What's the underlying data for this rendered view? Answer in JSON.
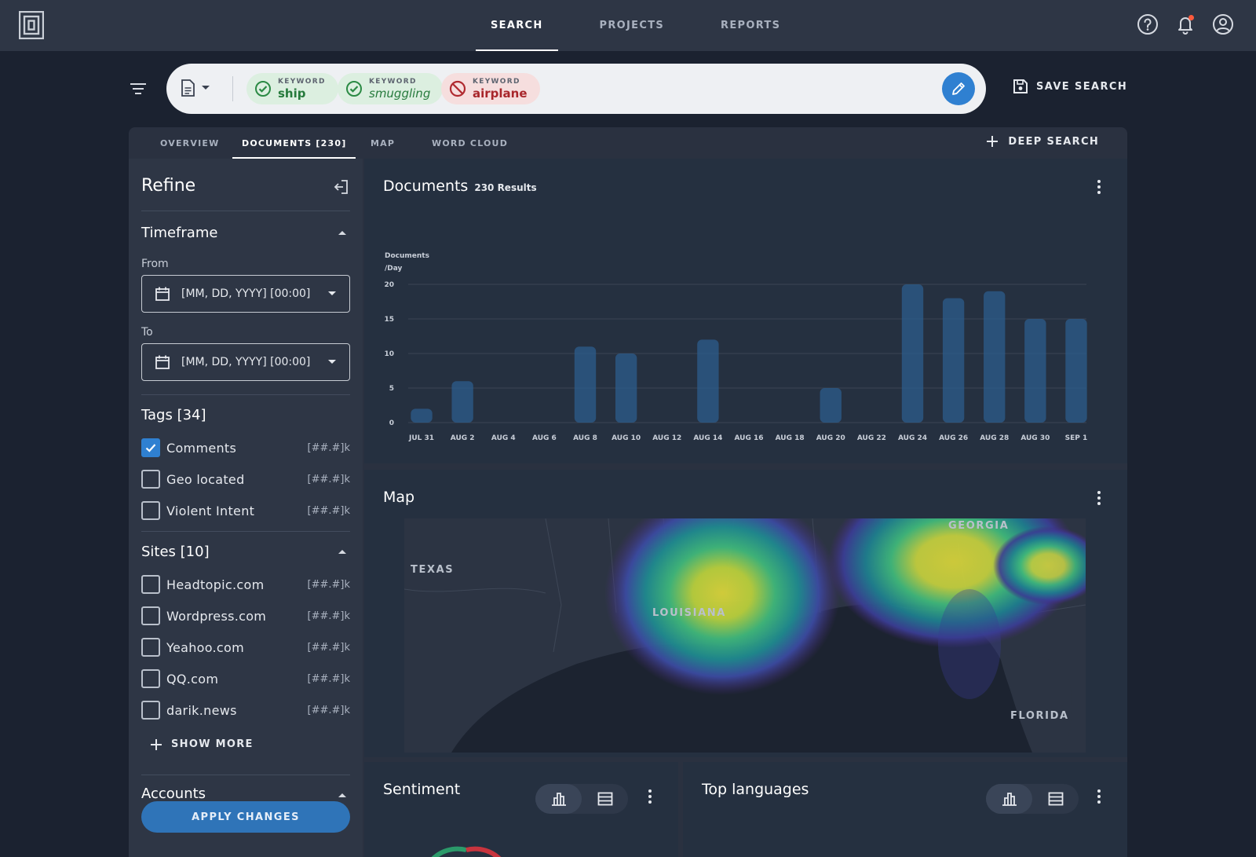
{
  "topbar": {
    "nav": [
      {
        "label": "SEARCH",
        "active": true
      },
      {
        "label": "PROJECTS",
        "active": false
      },
      {
        "label": "REPORTS",
        "active": false
      }
    ],
    "icons": [
      "help-icon",
      "bell-icon",
      "account-icon"
    ]
  },
  "search": {
    "chips": [
      {
        "kind": "KEYWORD",
        "word": "ship",
        "status": "include"
      },
      {
        "kind": "KEYWORD",
        "word": "smuggling",
        "status": "include"
      },
      {
        "kind": "KEYWORD",
        "word": "airplane",
        "status": "exclude"
      }
    ],
    "save_label": "SAVE SEARCH"
  },
  "tabs": [
    {
      "label": "OVERVIEW",
      "active": false
    },
    {
      "label": "DOCUMENTS [230]",
      "active": true
    },
    {
      "label": "MAP",
      "active": false
    },
    {
      "label": "WORD CLOUD",
      "active": false
    }
  ],
  "deep_search_label": "DEEP SEARCH",
  "refine": {
    "title": "Refine",
    "timeframe": {
      "title": "Timeframe",
      "from_label": "From",
      "to_label": "To",
      "from_placeholder": "[MM, DD, YYYY] [00:00]",
      "to_placeholder": "[MM, DD, YYYY] [00:00]"
    },
    "tags": {
      "title": "Tags [34]",
      "items": [
        {
          "label": "Comments",
          "count": "[##.#]k",
          "checked": true
        },
        {
          "label": "Geo located",
          "count": "[##.#]k",
          "checked": false
        },
        {
          "label": "Violent Intent",
          "count": "[##.#]k",
          "checked": false
        }
      ]
    },
    "sites": {
      "title": "Sites [10]",
      "items": [
        {
          "label": "Headtopic.com",
          "count": "[##.#]k",
          "checked": false
        },
        {
          "label": "Wordpress.com",
          "count": "[##.#]k",
          "checked": false
        },
        {
          "label": "Yeahoo.com",
          "count": "[##.#]k",
          "checked": false
        },
        {
          "label": "QQ.com",
          "count": "[##.#]k",
          "checked": false
        },
        {
          "label": "darik.news",
          "count": "[##.#]k",
          "checked": false
        }
      ],
      "show_more": "SHOW MORE"
    },
    "accounts": {
      "title": "Accounts"
    },
    "apply_label": "APPLY CHANGES"
  },
  "documents_card": {
    "title": "Documents",
    "result_count": "230 Results"
  },
  "chart_data": {
    "type": "bar",
    "ylabel_line1": "Documents",
    "ylabel_line2": "/Day",
    "ylim": [
      0,
      20
    ],
    "yticks": [
      0,
      5,
      10,
      15,
      20
    ],
    "grid": true,
    "bar_color": "#2c5c8c",
    "categories": [
      "JUL 31",
      "AUG 1",
      "AUG 2",
      "AUG 3",
      "AUG 4",
      "AUG 5",
      "AUG 6",
      "AUG 7",
      "AUG 8",
      "AUG 9",
      "AUG 10",
      "AUG 11",
      "AUG 12",
      "AUG 13",
      "AUG 14",
      "AUG 15",
      "AUG 16",
      "AUG 17",
      "AUG 18",
      "AUG 19",
      "AUG 20",
      "AUG 21",
      "AUG 22",
      "AUG 23",
      "AUG 24",
      "AUG 25",
      "AUG 26",
      "AUG 27",
      "AUG 28",
      "AUG 29",
      "AUG 30",
      "AUG 31",
      "SEP 1"
    ],
    "tick_labels": [
      "JUL 31",
      "AUG 2",
      "AUG 4",
      "AUG 6",
      "AUG 8",
      "AUG 10",
      "AUG 12",
      "AUG 14",
      "AUG 16",
      "AUG 18",
      "AUG 20",
      "AUG 22",
      "AUG 24",
      "AUG 26",
      "AUG 28",
      "AUG 30",
      "SEP 1"
    ],
    "values": [
      2,
      0,
      6,
      0,
      0,
      0,
      0,
      0,
      11,
      0,
      10,
      0,
      0,
      0,
      12,
      0,
      0,
      0,
      0,
      0,
      5,
      0,
      0,
      0,
      20,
      0,
      18,
      0,
      19,
      0,
      15,
      0,
      15
    ]
  },
  "map_card": {
    "title": "Map",
    "labels": [
      "TEXAS",
      "LOUISIANA",
      "GEORGIA",
      "FLORIDA"
    ]
  },
  "sentiment_card": {
    "title": "Sentiment"
  },
  "languages_card": {
    "title": "Top languages"
  }
}
